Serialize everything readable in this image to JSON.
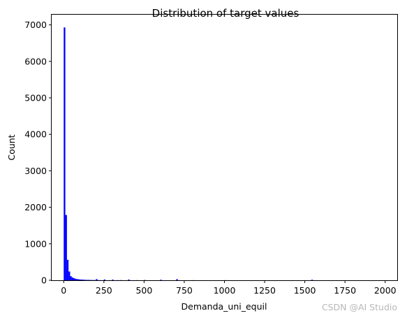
{
  "chart_data": {
    "type": "bar",
    "title": "Distribution of target values",
    "xlabel": "Demanda_uni_equil",
    "ylabel": "Count",
    "xlim": [
      -75,
      2075
    ],
    "ylim": [
      0,
      7280
    ],
    "x_ticks": [
      0,
      250,
      500,
      750,
      1000,
      1250,
      1500,
      1750,
      2000
    ],
    "y_ticks": [
      0,
      1000,
      2000,
      3000,
      4000,
      5000,
      6000,
      7000
    ],
    "bin_width": 10,
    "bar_color": "#0000ff",
    "grid": false,
    "bins": [
      {
        "x": 0,
        "count": 6930
      },
      {
        "x": 10,
        "count": 1790
      },
      {
        "x": 20,
        "count": 560
      },
      {
        "x": 30,
        "count": 240
      },
      {
        "x": 40,
        "count": 110
      },
      {
        "x": 50,
        "count": 75
      },
      {
        "x": 60,
        "count": 55
      },
      {
        "x": 70,
        "count": 40
      },
      {
        "x": 80,
        "count": 30
      },
      {
        "x": 90,
        "count": 25
      },
      {
        "x": 100,
        "count": 20
      },
      {
        "x": 110,
        "count": 18
      },
      {
        "x": 120,
        "count": 15
      },
      {
        "x": 130,
        "count": 12
      },
      {
        "x": 140,
        "count": 10
      },
      {
        "x": 150,
        "count": 10
      },
      {
        "x": 160,
        "count": 8
      },
      {
        "x": 170,
        "count": 7
      },
      {
        "x": 180,
        "count": 6
      },
      {
        "x": 190,
        "count": 5
      },
      {
        "x": 200,
        "count": 30
      },
      {
        "x": 210,
        "count": 4
      },
      {
        "x": 220,
        "count": 4
      },
      {
        "x": 240,
        "count": 3
      },
      {
        "x": 250,
        "count": 20
      },
      {
        "x": 280,
        "count": 3
      },
      {
        "x": 300,
        "count": 18
      },
      {
        "x": 330,
        "count": 3
      },
      {
        "x": 350,
        "count": 5
      },
      {
        "x": 400,
        "count": 20
      },
      {
        "x": 450,
        "count": 3
      },
      {
        "x": 500,
        "count": 8
      },
      {
        "x": 600,
        "count": 15
      },
      {
        "x": 700,
        "count": 30
      },
      {
        "x": 800,
        "count": 3
      },
      {
        "x": 1000,
        "count": 3
      },
      {
        "x": 1250,
        "count": 2
      },
      {
        "x": 1540,
        "count": 15
      },
      {
        "x": 2000,
        "count": 2
      }
    ]
  },
  "watermark": "CSDN @AI Studio"
}
